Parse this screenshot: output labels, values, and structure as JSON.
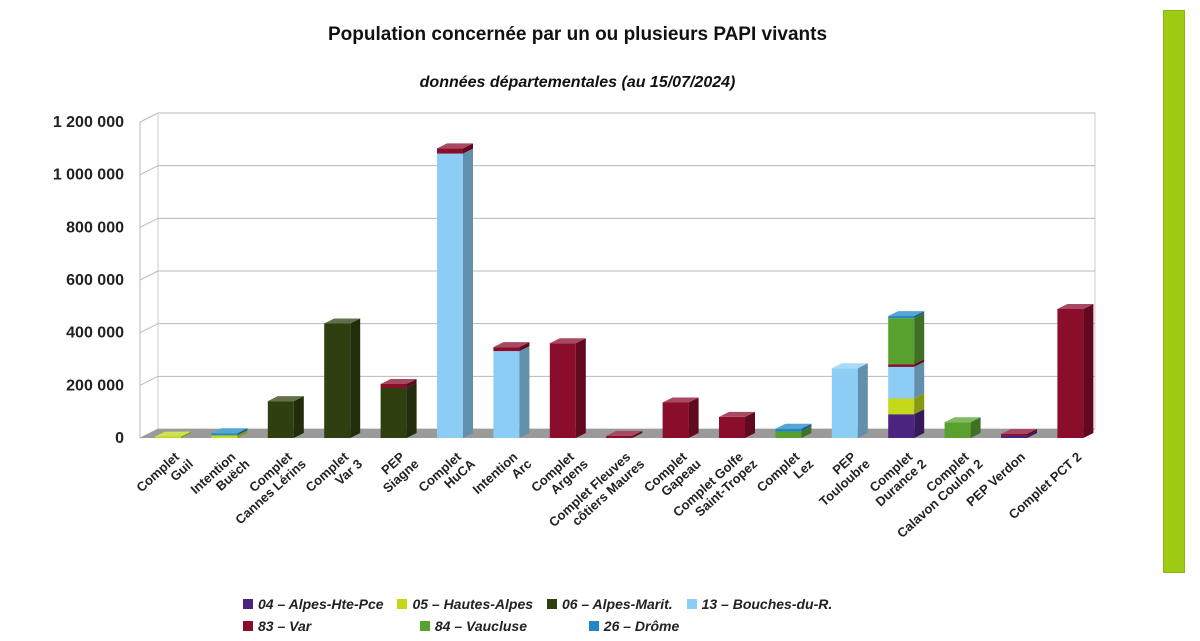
{
  "colors": {
    "accent_bar": "#9ecb12"
  },
  "chart_data": {
    "type": "bar",
    "stacked": true,
    "title": "Population concernée par un ou plusieurs PAPI vivants",
    "subtitle": "données départementales (au 15/07/2024)",
    "xlabel": "",
    "ylabel": "",
    "ylim": [
      0,
      1200000
    ],
    "yticks": [
      {
        "value": 0,
        "label": "0"
      },
      {
        "value": 200000,
        "label": "200 000"
      },
      {
        "value": 400000,
        "label": "400 000"
      },
      {
        "value": 600000,
        "label": "600 000"
      },
      {
        "value": 800000,
        "label": "800 000"
      },
      {
        "value": 1000000,
        "label": "1 000 000"
      },
      {
        "value": 1200000,
        "label": "1 200 000"
      }
    ],
    "grid": true,
    "legend_position": "bottom",
    "categories": [
      [
        "Complet",
        "Guil"
      ],
      [
        "Intention",
        "Buëch"
      ],
      [
        "Complet",
        "Cannes Lérins"
      ],
      [
        "Complet",
        "Var 3"
      ],
      [
        "PEP",
        "Siagne"
      ],
      [
        "Complet",
        "HuCA"
      ],
      [
        "Intention",
        "Arc"
      ],
      [
        "Complet",
        "Argens"
      ],
      [
        "Complet Fleuves",
        "côtiers Maures"
      ],
      [
        "Complet",
        "Gapeau"
      ],
      [
        "Complet Golfe",
        "Saint-Tropez"
      ],
      [
        "Complet",
        "Lez"
      ],
      [
        "PEP",
        "Touloubre"
      ],
      [
        "Complet",
        "Durance 2"
      ],
      [
        "Complet",
        "Calavon Coulon 2"
      ],
      [
        "PEP Verdon"
      ],
      [
        "Complet PCT 2"
      ]
    ],
    "series": [
      {
        "name": "04 – Alpes-Hte-Pce",
        "color": "#4b2480",
        "values": [
          0,
          0,
          0,
          0,
          0,
          0,
          0,
          0,
          0,
          0,
          0,
          0,
          0,
          90000,
          0,
          8000,
          0
        ]
      },
      {
        "name": "05 – Hautes-Alpes",
        "color": "#c2d91a",
        "values": [
          5000,
          10000,
          0,
          0,
          0,
          0,
          0,
          0,
          0,
          0,
          0,
          0,
          0,
          60000,
          0,
          0,
          0
        ]
      },
      {
        "name": "06 – Alpes-Marit.",
        "color": "#2f4010",
        "values": [
          0,
          0,
          140000,
          435000,
          190000,
          0,
          0,
          0,
          0,
          0,
          0,
          0,
          0,
          0,
          0,
          0,
          0
        ]
      },
      {
        "name": "13 –  Bouches-du-R.",
        "color": "#8ccdf5",
        "values": [
          0,
          0,
          0,
          0,
          0,
          1080000,
          330000,
          0,
          0,
          0,
          0,
          0,
          265000,
          120000,
          0,
          0,
          0
        ]
      },
      {
        "name": "83 –  Var",
        "color": "#8a0d2c",
        "values": [
          0,
          0,
          0,
          0,
          15000,
          20000,
          15000,
          360000,
          8000,
          135000,
          80000,
          0,
          0,
          10000,
          0,
          7000,
          490000
        ]
      },
      {
        "name": "84 –  Vaucluse",
        "color": "#58a12f",
        "values": [
          0,
          0,
          0,
          0,
          0,
          0,
          0,
          0,
          0,
          0,
          0,
          25000,
          0,
          175000,
          60000,
          0,
          0
        ]
      },
      {
        "name": "26  –  Drôme",
        "color": "#1f86c8",
        "values": [
          0,
          8000,
          0,
          0,
          0,
          0,
          0,
          0,
          0,
          0,
          0,
          10000,
          0,
          8000,
          0,
          0,
          0
        ]
      }
    ]
  }
}
